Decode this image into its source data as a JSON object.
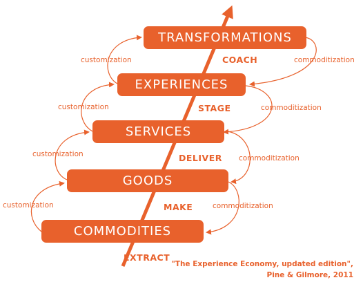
{
  "levels": {
    "transformations": "TRANSFORMATIONS",
    "experiences": "EXPERIENCES",
    "services": "SERVICES",
    "goods": "GOODS",
    "commodities": "COMMODITIES"
  },
  "verbs": {
    "coach": "COACH",
    "stage": "STAGE",
    "deliver": "DELIVER",
    "make": "MAKE",
    "extract": "EXTRACT"
  },
  "left_label": "customization",
  "right_label": "commoditization",
  "citation": {
    "line1": "\"The Experience Economy, updated edition\",",
    "line2": "Pine & Gilmore, 2011"
  },
  "colors": {
    "accent": "#e8612c",
    "text_on_accent": "#ffffff"
  }
}
